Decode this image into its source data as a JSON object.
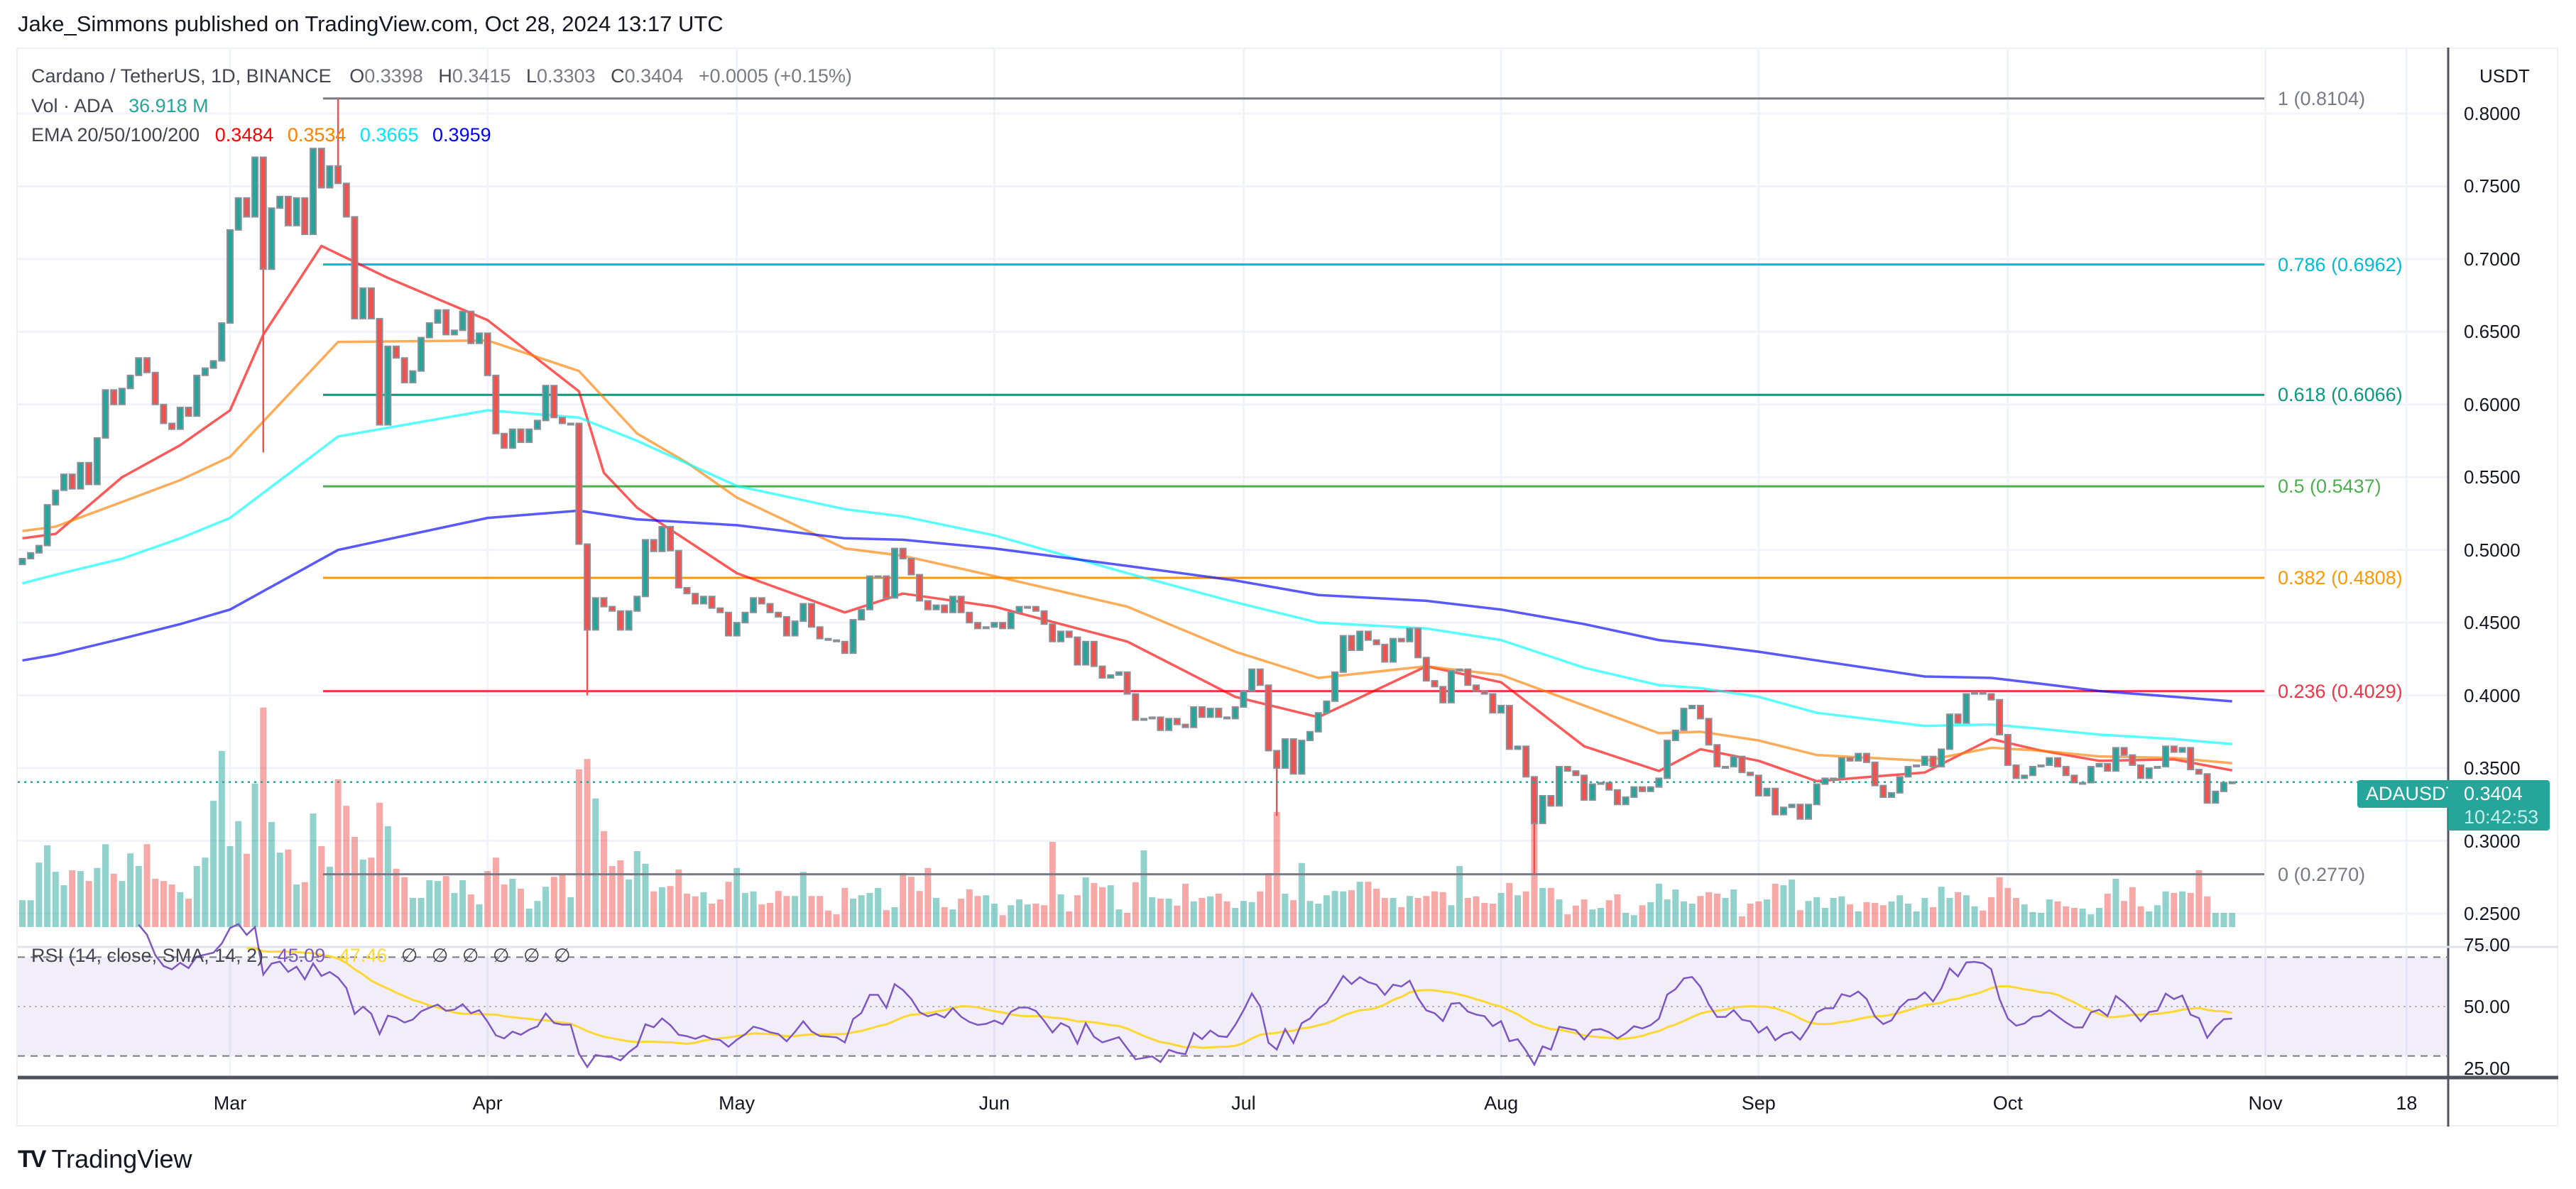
{
  "header": {
    "published": "Jake_Simmons published on TradingView.com, Oct 28, 2024 13:17 UTC"
  },
  "legend": {
    "symbol": "Cardano / TetherUS, 1D, BINANCE",
    "o_label": "O",
    "o": "0.3398",
    "h_label": "H",
    "h": "0.3415",
    "l_label": "L",
    "l": "0.3303",
    "c_label": "C",
    "c": "0.3404",
    "change": "+0.0005 (+0.15%)",
    "vol_label": "Vol · ADA",
    "vol": "36.918 M",
    "ema_label": "EMA 20/50/100/200",
    "ema20": "0.3484",
    "ema50": "0.3534",
    "ema100": "0.3665",
    "ema200": "0.3959"
  },
  "rsi_legend": {
    "label": "RSI (14, close, SMA, 14, 2)",
    "rsi": "45.09",
    "sma": "47.46",
    "na": [
      "∅",
      "∅",
      "∅",
      "∅",
      "∅",
      "∅"
    ]
  },
  "price_axis": {
    "currency": "USDT",
    "ticks": [
      "0.8000",
      "0.7500",
      "0.7000",
      "0.6500",
      "0.6000",
      "0.5500",
      "0.5000",
      "0.4500",
      "0.4000",
      "0.3500",
      "0.3000",
      "0.2500"
    ]
  },
  "rsi_axis": {
    "ticks": [
      "75.00",
      "50.00",
      "25.00"
    ],
    "upper_band": 70,
    "lower_band": 30,
    "mid": 50
  },
  "time_axis": {
    "labels": [
      {
        "text": "Mar",
        "date": "2024-03-01"
      },
      {
        "text": "Apr",
        "date": "2024-04-01"
      },
      {
        "text": "May",
        "date": "2024-05-01"
      },
      {
        "text": "Jun",
        "date": "2024-06-01"
      },
      {
        "text": "Jul",
        "date": "2024-07-01"
      },
      {
        "text": "Aug",
        "date": "2024-08-01"
      },
      {
        "text": "Sep",
        "date": "2024-09-01"
      },
      {
        "text": "Oct",
        "date": "2024-10-01"
      },
      {
        "text": "Nov",
        "date": "2024-11-01"
      },
      {
        "text": "18",
        "date": "2024-11-18"
      }
    ]
  },
  "last_price": {
    "symbol": "ADAUSDT",
    "price": "0.3404",
    "countdown": "10:42:53"
  },
  "fib": [
    {
      "label": "1 (0.8104)",
      "level": 0.8104,
      "color": "#787b86"
    },
    {
      "label": "0.786 (0.6962)",
      "level": 0.6962,
      "color": "#00bcd4"
    },
    {
      "label": "0.618 (0.6066)",
      "level": 0.6066,
      "color": "#089981"
    },
    {
      "label": "0.5 (0.5437)",
      "level": 0.5437,
      "color": "#4caf50"
    },
    {
      "label": "0.382 (0.4808)",
      "level": 0.4808,
      "color": "#ff9800"
    },
    {
      "label": "0.236 (0.4029)",
      "level": 0.4029,
      "color": "#f23645"
    },
    {
      "label": "0 (0.2770)",
      "level": 0.277,
      "color": "#787b86"
    }
  ],
  "footer": {
    "brand": "TradingView"
  },
  "colors": {
    "up": "#26a69a",
    "down": "#ef5350",
    "ema20": "#ff0000",
    "ema50": "#ff8000",
    "ema100": "#00ffff",
    "ema200": "#0000ff",
    "rsi": "#7e57c2",
    "rsi_sma": "#fdd835",
    "vol_value": "#26a69a"
  },
  "chart_data": {
    "type": "candlestick",
    "start_date": "2024-02-05",
    "first_open": 0.49,
    "ylim": [
      0.25,
      0.81
    ],
    "close": [
      0.494,
      0.498,
      0.503,
      0.531,
      0.541,
      0.552,
      0.542,
      0.56,
      0.545,
      0.577,
      0.61,
      0.6,
      0.611,
      0.62,
      0.632,
      0.622,
      0.6,
      0.587,
      0.583,
      0.598,
      0.592,
      0.62,
      0.625,
      0.63,
      0.656,
      0.72,
      0.742,
      0.729,
      0.77,
      0.693,
      0.735,
      0.743,
      0.723,
      0.742,
      0.717,
      0.776,
      0.749,
      0.764,
      0.752,
      0.729,
      0.659,
      0.68,
      0.659,
      0.586,
      0.64,
      0.632,
      0.615,
      0.623,
      0.646,
      0.656,
      0.665,
      0.648,
      0.651,
      0.664,
      0.642,
      0.649,
      0.62,
      0.58,
      0.57,
      0.583,
      0.574,
      0.583,
      0.589,
      0.613,
      0.591,
      0.587,
      0.587,
      0.504,
      0.445,
      0.467,
      0.461,
      0.458,
      0.445,
      0.458,
      0.468,
      0.507,
      0.499,
      0.516,
      0.4995,
      0.474,
      0.47,
      0.463,
      0.468,
      0.46,
      0.457,
      0.441,
      0.45,
      0.457,
      0.467,
      0.463,
      0.457,
      0.454,
      0.441,
      0.451,
      0.463,
      0.447,
      0.439,
      0.438,
      0.437,
      0.429,
      0.452,
      0.459,
      0.482,
      0.482,
      0.467,
      0.501,
      0.494,
      0.483,
      0.465,
      0.459,
      0.462,
      0.457,
      0.468,
      0.457,
      0.45,
      0.446,
      0.447,
      0.45,
      0.446,
      0.457,
      0.461,
      0.461,
      0.458,
      0.449,
      0.437,
      0.444,
      0.44,
      0.421,
      0.437,
      0.42,
      0.412,
      0.414,
      0.416,
      0.401,
      0.383,
      0.384,
      0.385,
      0.376,
      0.384,
      0.38,
      0.378,
      0.392,
      0.385,
      0.391,
      0.385,
      0.384,
      0.392,
      0.403,
      0.418,
      0.407,
      0.362,
      0.35,
      0.37,
      0.346,
      0.369,
      0.375,
      0.388,
      0.396,
      0.416,
      0.441,
      0.431,
      0.444,
      0.438,
      0.435,
      0.423,
      0.439,
      0.437,
      0.446,
      0.426,
      0.41,
      0.406,
      0.395,
      0.417,
      0.418,
      0.407,
      0.403,
      0.401,
      0.388,
      0.393,
      0.363,
      0.365,
      0.344,
      0.312,
      0.331,
      0.324,
      0.351,
      0.348,
      0.345,
      0.328,
      0.339,
      0.34,
      0.335,
      0.325,
      0.33,
      0.337,
      0.334,
      0.337,
      0.343,
      0.369,
      0.376,
      0.391,
      0.393,
      0.384,
      0.366,
      0.351,
      0.351,
      0.358,
      0.347,
      0.345,
      0.331,
      0.336,
      0.318,
      0.323,
      0.325,
      0.315,
      0.325,
      0.339,
      0.343,
      0.343,
      0.357,
      0.355,
      0.36,
      0.354,
      0.338,
      0.33,
      0.333,
      0.344,
      0.351,
      0.352,
      0.358,
      0.351,
      0.363,
      0.387,
      0.381,
      0.401,
      0.402,
      0.401,
      0.397,
      0.373,
      0.352,
      0.343,
      0.345,
      0.351,
      0.352,
      0.357,
      0.351,
      0.345,
      0.34,
      0.34,
      0.351,
      0.353,
      0.348,
      0.364,
      0.359,
      0.352,
      0.343,
      0.35,
      0.351,
      0.365,
      0.361,
      0.364,
      0.349,
      0.346,
      0.326,
      0.334,
      0.34,
      0.3404
    ],
    "notable_wicks": [
      {
        "date": "2024-03-05",
        "low": 0.567
      },
      {
        "date": "2024-03-14",
        "high": 0.8104
      },
      {
        "date": "2024-04-13",
        "low": 0.4
      },
      {
        "date": "2024-07-05",
        "low": 0.317
      },
      {
        "date": "2024-08-05",
        "low": 0.277
      }
    ],
    "volume_m": [
      70,
      70,
      168,
      213,
      144,
      109,
      148,
      146,
      120,
      154,
      216,
      139,
      120,
      192,
      159,
      216,
      126,
      120,
      111,
      91,
      74,
      159,
      181,
      329,
      459,
      211,
      276,
      191,
      374,
      572,
      274,
      194,
      202,
      111,
      117,
      296,
      211,
      157,
      385,
      316,
      235,
      176,
      181,
      324,
      263,
      152,
      130,
      76,
      76,
      122,
      120,
      133,
      89,
      122,
      85,
      59,
      146,
      181,
      111,
      126,
      100,
      48,
      68,
      105,
      131,
      137,
      78,
      411,
      438,
      335,
      250,
      159,
      174,
      124,
      198,
      165,
      93,
      104,
      107,
      150,
      87,
      80,
      91,
      61,
      72,
      118,
      154,
      89,
      93,
      59,
      63,
      94,
      81,
      81,
      144,
      81,
      81,
      43,
      33,
      102,
      74,
      83,
      89,
      102,
      44,
      52,
      141,
      131,
      94,
      154,
      76,
      52,
      46,
      74,
      98,
      81,
      83,
      61,
      31,
      57,
      72,
      59,
      61,
      57,
      222,
      85,
      41,
      83,
      130,
      115,
      104,
      109,
      46,
      37,
      117,
      200,
      78,
      74,
      74,
      56,
      113,
      67,
      76,
      80,
      87,
      67,
      50,
      68,
      65,
      93,
      141,
      300,
      87,
      70,
      167,
      68,
      61,
      83,
      94,
      93,
      96,
      118,
      118,
      100,
      76,
      76,
      52,
      81,
      76,
      81,
      93,
      91,
      57,
      159,
      76,
      80,
      63,
      61,
      89,
      115,
      83,
      93,
      277,
      102,
      102,
      72,
      33,
      56,
      72,
      46,
      50,
      70,
      85,
      37,
      31,
      57,
      65,
      113,
      72,
      98,
      67,
      61,
      81,
      91,
      87,
      76,
      98,
      28,
      61,
      67,
      72,
      113,
      109,
      124,
      44,
      68,
      78,
      50,
      76,
      80,
      59,
      41,
      65,
      63,
      57,
      67,
      83,
      61,
      41,
      76,
      52,
      105,
      76,
      91,
      83,
      54,
      43,
      78,
      130,
      102,
      76,
      59,
      39,
      37,
      72,
      67,
      54,
      50,
      48,
      33,
      50,
      87,
      126,
      68,
      104,
      54,
      41,
      57,
      93,
      89,
      93,
      89,
      148,
      80,
      37,
      37,
      37
    ],
    "ema": [
      {
        "period": 20,
        "color": "#ff0000",
        "points": [
          [
            "2024-02-05",
            0.508
          ],
          [
            "2024-02-09",
            0.511
          ],
          [
            "2024-02-17",
            0.55
          ],
          [
            "2024-02-24",
            0.572
          ],
          [
            "2024-03-01",
            0.596
          ],
          [
            "2024-03-05",
            0.648
          ],
          [
            "2024-03-12",
            0.709
          ],
          [
            "2024-03-20",
            0.687
          ],
          [
            "2024-04-01",
            0.658
          ],
          [
            "2024-04-12",
            0.609
          ],
          [
            "2024-04-15",
            0.553
          ],
          [
            "2024-04-19",
            0.529
          ],
          [
            "2024-05-01",
            0.484
          ],
          [
            "2024-05-14",
            0.457
          ],
          [
            "2024-05-21",
            0.47
          ],
          [
            "2024-06-01",
            0.461
          ],
          [
            "2024-06-17",
            0.437
          ],
          [
            "2024-06-30",
            0.399
          ],
          [
            "2024-07-10",
            0.385
          ],
          [
            "2024-07-23",
            0.42
          ],
          [
            "2024-08-01",
            0.409
          ],
          [
            "2024-08-11",
            0.365
          ],
          [
            "2024-08-20",
            0.348
          ],
          [
            "2024-08-25",
            0.363
          ],
          [
            "2024-09-01",
            0.355
          ],
          [
            "2024-09-08",
            0.341
          ],
          [
            "2024-09-21",
            0.347
          ],
          [
            "2024-09-29",
            0.37
          ],
          [
            "2024-10-05",
            0.362
          ],
          [
            "2024-10-12",
            0.355
          ],
          [
            "2024-10-21",
            0.356
          ],
          [
            "2024-10-28",
            0.3484
          ]
        ]
      },
      {
        "period": 50,
        "color": "#ff8000",
        "points": [
          [
            "2024-02-05",
            0.513
          ],
          [
            "2024-02-09",
            0.516
          ],
          [
            "2024-02-17",
            0.533
          ],
          [
            "2024-02-24",
            0.548
          ],
          [
            "2024-03-01",
            0.564
          ],
          [
            "2024-03-14",
            0.643
          ],
          [
            "2024-04-01",
            0.644
          ],
          [
            "2024-04-12",
            0.623
          ],
          [
            "2024-04-19",
            0.58
          ],
          [
            "2024-04-25",
            0.56
          ],
          [
            "2024-05-01",
            0.536
          ],
          [
            "2024-05-14",
            0.501
          ],
          [
            "2024-05-21",
            0.496
          ],
          [
            "2024-06-01",
            0.482
          ],
          [
            "2024-06-17",
            0.461
          ],
          [
            "2024-06-30",
            0.43
          ],
          [
            "2024-07-10",
            0.412
          ],
          [
            "2024-07-23",
            0.42
          ],
          [
            "2024-08-01",
            0.414
          ],
          [
            "2024-08-11",
            0.393
          ],
          [
            "2024-08-20",
            0.374
          ],
          [
            "2024-08-25",
            0.375
          ],
          [
            "2024-09-01",
            0.369
          ],
          [
            "2024-09-08",
            0.359
          ],
          [
            "2024-09-21",
            0.355
          ],
          [
            "2024-09-29",
            0.364
          ],
          [
            "2024-10-05",
            0.362
          ],
          [
            "2024-10-12",
            0.358
          ],
          [
            "2024-10-21",
            0.357
          ],
          [
            "2024-10-28",
            0.3534
          ]
        ]
      },
      {
        "period": 100,
        "color": "#00ffff",
        "points": [
          [
            "2024-02-05",
            0.477
          ],
          [
            "2024-02-09",
            0.483
          ],
          [
            "2024-02-17",
            0.494
          ],
          [
            "2024-02-24",
            0.508
          ],
          [
            "2024-03-01",
            0.522
          ],
          [
            "2024-03-14",
            0.578
          ],
          [
            "2024-04-01",
            0.596
          ],
          [
            "2024-04-12",
            0.591
          ],
          [
            "2024-04-19",
            0.575
          ],
          [
            "2024-05-01",
            0.544
          ],
          [
            "2024-05-14",
            0.528
          ],
          [
            "2024-05-21",
            0.523
          ],
          [
            "2024-06-01",
            0.51
          ],
          [
            "2024-06-17",
            0.484
          ],
          [
            "2024-06-30",
            0.464
          ],
          [
            "2024-07-10",
            0.45
          ],
          [
            "2024-07-23",
            0.446
          ],
          [
            "2024-08-01",
            0.438
          ],
          [
            "2024-08-11",
            0.419
          ],
          [
            "2024-08-20",
            0.407
          ],
          [
            "2024-08-25",
            0.405
          ],
          [
            "2024-09-01",
            0.399
          ],
          [
            "2024-09-08",
            0.388
          ],
          [
            "2024-09-21",
            0.379
          ],
          [
            "2024-09-29",
            0.38
          ],
          [
            "2024-10-05",
            0.377
          ],
          [
            "2024-10-12",
            0.373
          ],
          [
            "2024-10-21",
            0.37
          ],
          [
            "2024-10-28",
            0.3665
          ]
        ]
      },
      {
        "period": 200,
        "color": "#0000ff",
        "points": [
          [
            "2024-02-05",
            0.424
          ],
          [
            "2024-02-09",
            0.428
          ],
          [
            "2024-02-17",
            0.439
          ],
          [
            "2024-02-24",
            0.449
          ],
          [
            "2024-03-01",
            0.459
          ],
          [
            "2024-03-14",
            0.5
          ],
          [
            "2024-04-01",
            0.522
          ],
          [
            "2024-04-12",
            0.527
          ],
          [
            "2024-04-19",
            0.521
          ],
          [
            "2024-05-01",
            0.517
          ],
          [
            "2024-05-14",
            0.508
          ],
          [
            "2024-05-21",
            0.507
          ],
          [
            "2024-06-01",
            0.501
          ],
          [
            "2024-06-17",
            0.489
          ],
          [
            "2024-06-30",
            0.479
          ],
          [
            "2024-07-10",
            0.469
          ],
          [
            "2024-07-23",
            0.465
          ],
          [
            "2024-08-01",
            0.459
          ],
          [
            "2024-08-11",
            0.449
          ],
          [
            "2024-08-20",
            0.438
          ],
          [
            "2024-08-25",
            0.435
          ],
          [
            "2024-09-01",
            0.43
          ],
          [
            "2024-09-08",
            0.424
          ],
          [
            "2024-09-21",
            0.413
          ],
          [
            "2024-09-29",
            0.412
          ],
          [
            "2024-10-05",
            0.408
          ],
          [
            "2024-10-12",
            0.403
          ],
          [
            "2024-10-21",
            0.399
          ],
          [
            "2024-10-28",
            0.3959
          ]
        ]
      }
    ]
  }
}
